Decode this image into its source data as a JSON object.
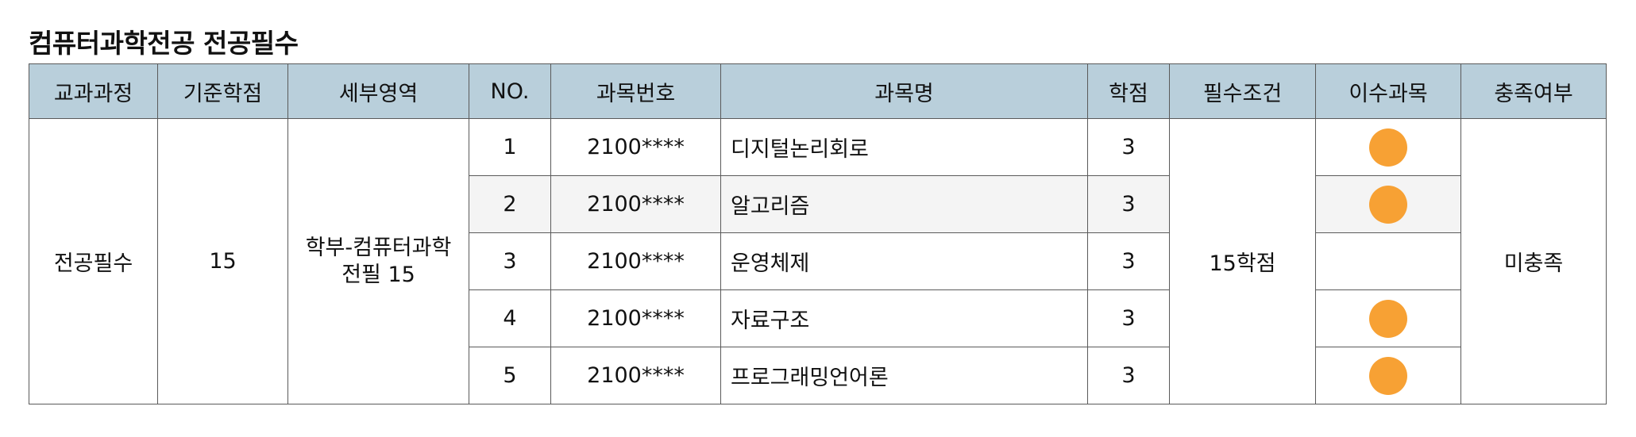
{
  "title": "컴퓨터과학전공 전공필수",
  "colors": {
    "header_bg": "#b9cfdb",
    "dot": "#f7a134",
    "alt_row": "#f4f4f4"
  },
  "headers": [
    "교과과정",
    "기준학점",
    "세부영역",
    "NO.",
    "과목번호",
    "과목명",
    "학점",
    "필수조건",
    "이수과목",
    "충족여부"
  ],
  "group": {
    "course": "전공필수",
    "base_credit": "15",
    "area_line1": "학부-컴퓨터과학",
    "area_line2": "전필 15",
    "condition": "15학점",
    "fulfilled": "미충족"
  },
  "rows": [
    {
      "no": "1",
      "code": "2100****",
      "name": "디지털논리회로",
      "credit": "3",
      "completed": true
    },
    {
      "no": "2",
      "code": "2100****",
      "name": "알고리즘",
      "credit": "3",
      "completed": true
    },
    {
      "no": "3",
      "code": "2100****",
      "name": "운영체제",
      "credit": "3",
      "completed": false
    },
    {
      "no": "4",
      "code": "2100****",
      "name": "자료구조",
      "credit": "3",
      "completed": true
    },
    {
      "no": "5",
      "code": "2100****",
      "name": "프로그래밍언어론",
      "credit": "3",
      "completed": true
    }
  ]
}
